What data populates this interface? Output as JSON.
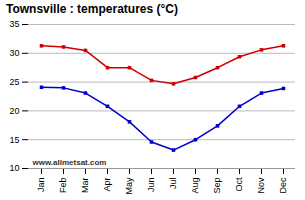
{
  "chart_data": {
    "type": "line",
    "title": "Townsville : temperatures (°C)",
    "categories": [
      "Jan",
      "Feb",
      "Mar",
      "Apr",
      "May",
      "Jun",
      "Jul",
      "Aug",
      "Sep",
      "Oct",
      "Nov",
      "Dec"
    ],
    "series": [
      {
        "color": "#cc0000",
        "values": [
          31.3,
          31.1,
          30.5,
          27.5,
          27.5,
          25.3,
          24.7,
          25.8,
          27.5,
          29.4,
          30.6,
          31.3
        ]
      },
      {
        "color": "#0000cc",
        "values": [
          24.1,
          24.0,
          23.1,
          20.8,
          18.1,
          14.6,
          13.2,
          15.0,
          17.4,
          20.8,
          23.1,
          23.9
        ]
      }
    ],
    "ylim": [
      10,
      35
    ],
    "yticks": [
      10,
      15,
      20,
      25,
      30,
      35
    ],
    "grid": true,
    "marker": "square",
    "annotations": [
      "www.allmetsat.com"
    ]
  }
}
